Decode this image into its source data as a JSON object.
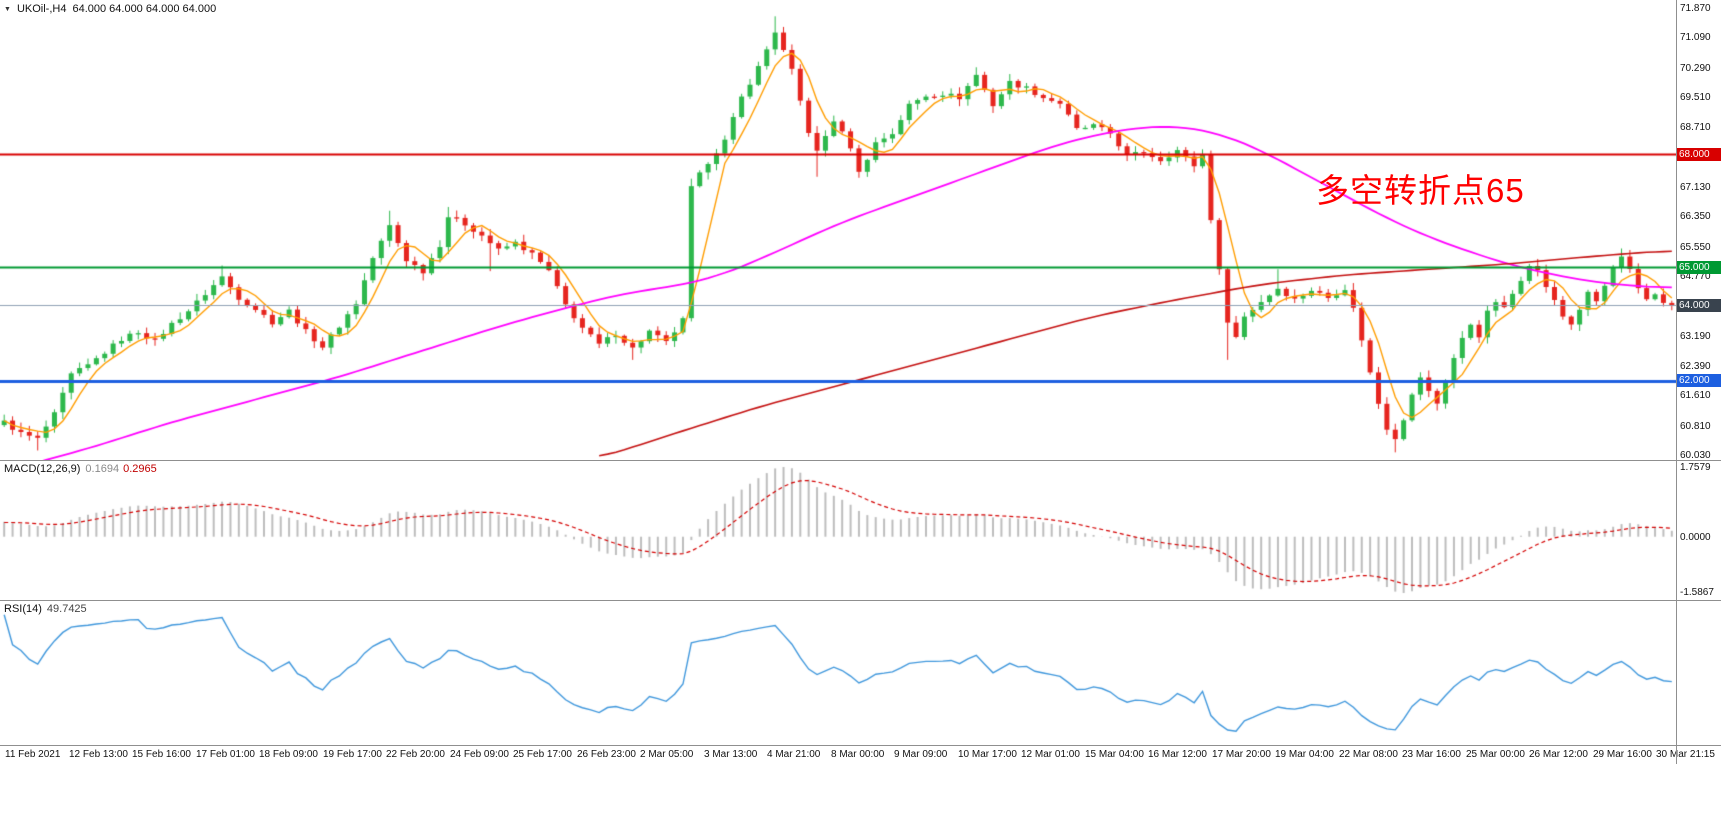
{
  "window": {
    "symbol_label": "UKOil-,H4",
    "ohlc_values": "64.000 64.000 64.000 64.000"
  },
  "annotation": {
    "text": "多空转折点65",
    "color": "#ff0000"
  },
  "chart_data": [
    {
      "type": "candlestick",
      "title": "UKOil- H4",
      "bars": 200,
      "up_color": "#2db84c",
      "down_color": "#e6251f",
      "y_axis": {
        "min": 60.03,
        "max": 71.87,
        "visible_ticks": [
          "71.870",
          "71.090",
          "70.290",
          "69.510",
          "68.710",
          "67.130",
          "66.350",
          "65.550",
          "64.770",
          "63.190",
          "62.390",
          "61.610",
          "60.810",
          "60.030"
        ]
      },
      "x_labels": [
        "11 Feb 2021",
        "12 Feb 13:00",
        "15 Feb 16:00",
        "17 Feb 01:00",
        "18 Feb 09:00",
        "19 Feb 17:00",
        "22 Feb 20:00",
        "24 Feb 09:00",
        "25 Feb 17:00",
        "26 Feb 23:00",
        "2 Mar 05:00",
        "3 Mar 13:00",
        "4 Mar 21:00",
        "8 Mar 00:00",
        "9 Mar 09:00",
        "10 Mar 17:00",
        "12 Mar 01:00",
        "15 Mar 04:00",
        "16 Mar 12:00",
        "17 Mar 20:00",
        "19 Mar 04:00",
        "22 Mar 08:00",
        "23 Mar 16:00",
        "25 Mar 00:00",
        "26 Mar 12:00",
        "29 Mar 16:00",
        "30 Mar 21:15"
      ],
      "price_anchors": [
        [
          0,
          60.9
        ],
        [
          2,
          60.6
        ],
        [
          4,
          60.45
        ],
        [
          6,
          61.1
        ],
        [
          8,
          62.15
        ],
        [
          10,
          62.4
        ],
        [
          12,
          62.75
        ],
        [
          14,
          63.1
        ],
        [
          16,
          63.3
        ],
        [
          18,
          63.05
        ],
        [
          20,
          63.5
        ],
        [
          22,
          63.85
        ],
        [
          24,
          64.3
        ],
        [
          26,
          64.75
        ],
        [
          28,
          64.2
        ],
        [
          30,
          63.9
        ],
        [
          32,
          63.55
        ],
        [
          34,
          63.85
        ],
        [
          36,
          63.3
        ],
        [
          38,
          62.9
        ],
        [
          40,
          63.45
        ],
        [
          42,
          64.05
        ],
        [
          44,
          65.25
        ],
        [
          46,
          66.1
        ],
        [
          48,
          65.2
        ],
        [
          50,
          64.9
        ],
        [
          52,
          65.6
        ],
        [
          53,
          66.35
        ],
        [
          55,
          66.15
        ],
        [
          57,
          65.85
        ],
        [
          59,
          65.45
        ],
        [
          61,
          65.65
        ],
        [
          63,
          65.35
        ],
        [
          65,
          64.9
        ],
        [
          67,
          64.0
        ],
        [
          69,
          63.4
        ],
        [
          71,
          62.95
        ],
        [
          73,
          63.25
        ],
        [
          75,
          62.85
        ],
        [
          77,
          63.3
        ],
        [
          79,
          63.0
        ],
        [
          81,
          63.6
        ],
        [
          82,
          67.1
        ],
        [
          84,
          67.8
        ],
        [
          86,
          68.35
        ],
        [
          88,
          69.5
        ],
        [
          90,
          70.3
        ],
        [
          92,
          71.25
        ],
        [
          94,
          70.2
        ],
        [
          96,
          68.6
        ],
        [
          97,
          68.05
        ],
        [
          99,
          68.9
        ],
        [
          101,
          68.2
        ],
        [
          102,
          67.5
        ],
        [
          104,
          68.3
        ],
        [
          106,
          68.55
        ],
        [
          108,
          69.3
        ],
        [
          110,
          69.55
        ],
        [
          112,
          69.6
        ],
        [
          114,
          69.5
        ],
        [
          116,
          70.1
        ],
        [
          118,
          69.3
        ],
        [
          120,
          69.9
        ],
        [
          122,
          69.75
        ],
        [
          124,
          69.5
        ],
        [
          126,
          69.35
        ],
        [
          128,
          68.65
        ],
        [
          130,
          68.75
        ],
        [
          132,
          68.55
        ],
        [
          134,
          67.95
        ],
        [
          136,
          68.05
        ],
        [
          138,
          67.85
        ],
        [
          140,
          68.1
        ],
        [
          142,
          67.7
        ],
        [
          143,
          68.0
        ],
        [
          144,
          66.3
        ],
        [
          145,
          64.9
        ],
        [
          146,
          63.6
        ],
        [
          147,
          63.15
        ],
        [
          148,
          63.7
        ],
        [
          150,
          64.1
        ],
        [
          152,
          64.45
        ],
        [
          154,
          64.15
        ],
        [
          156,
          64.4
        ],
        [
          158,
          64.2
        ],
        [
          160,
          64.45
        ],
        [
          161,
          63.9
        ],
        [
          162,
          63.1
        ],
        [
          163,
          62.2
        ],
        [
          164,
          61.4
        ],
        [
          165,
          60.75
        ],
        [
          166,
          60.5
        ],
        [
          167,
          61.0
        ],
        [
          168,
          61.6
        ],
        [
          169,
          62.1
        ],
        [
          170,
          61.7
        ],
        [
          171,
          61.4
        ],
        [
          172,
          62.0
        ],
        [
          173,
          62.6
        ],
        [
          174,
          63.1
        ],
        [
          175,
          63.5
        ],
        [
          176,
          63.2
        ],
        [
          177,
          63.8
        ],
        [
          178,
          64.1
        ],
        [
          179,
          63.9
        ],
        [
          180,
          64.3
        ],
        [
          181,
          64.7
        ],
        [
          182,
          65.1
        ],
        [
          183,
          64.9
        ],
        [
          184,
          64.5
        ],
        [
          185,
          64.1
        ],
        [
          186,
          63.7
        ],
        [
          187,
          63.5
        ],
        [
          188,
          63.9
        ],
        [
          189,
          64.3
        ],
        [
          190,
          64.1
        ],
        [
          191,
          64.5
        ],
        [
          192,
          65.0
        ],
        [
          193,
          65.25
        ],
        [
          194,
          64.9
        ],
        [
          195,
          64.4
        ],
        [
          196,
          64.15
        ],
        [
          197,
          64.3
        ],
        [
          198,
          64.1
        ],
        [
          199,
          64.0
        ]
      ],
      "wick_overrides": [
        {
          "i": 4,
          "low": 60.15
        },
        {
          "i": 26,
          "high": 65.05
        },
        {
          "i": 46,
          "high": 66.5
        },
        {
          "i": 53,
          "high": 66.6
        },
        {
          "i": 58,
          "low": 64.9
        },
        {
          "i": 75,
          "low": 62.55
        },
        {
          "i": 82,
          "high": 67.35
        },
        {
          "i": 92,
          "high": 71.65
        },
        {
          "i": 97,
          "low": 67.4
        },
        {
          "i": 116,
          "high": 70.3
        },
        {
          "i": 146,
          "low": 62.55
        },
        {
          "i": 152,
          "high": 64.95
        },
        {
          "i": 166,
          "low": 60.1
        },
        {
          "i": 193,
          "high": 65.5
        }
      ],
      "hlines": [
        {
          "price": 68.0,
          "label": "68.000",
          "color": "#d80000",
          "width": 2
        },
        {
          "price": 65.0,
          "label": "65.000",
          "color": "#009933",
          "width": 2
        },
        {
          "price": 62.0,
          "label": "62.000",
          "color": "#1d5fe0",
          "width": 3
        }
      ],
      "current_price": {
        "value": 64.0,
        "label": "64.000",
        "line_color": "#8fa0b4",
        "badge_color": "#39434e"
      },
      "moving_averages": [
        {
          "name": "fast-ma",
          "color": "#ff9d00",
          "type": "sma",
          "period": 5
        },
        {
          "name": "mid-ma",
          "color": "#ff00ff",
          "anchors": [
            [
              0,
              59.6
            ],
            [
              10,
              60.2
            ],
            [
              20,
              60.9
            ],
            [
              30,
              61.5
            ],
            [
              40,
              62.1
            ],
            [
              50,
              62.8
            ],
            [
              60,
              63.5
            ],
            [
              70,
              64.1
            ],
            [
              75,
              64.35
            ],
            [
              80,
              64.5
            ],
            [
              85,
              64.75
            ],
            [
              90,
              65.2
            ],
            [
              95,
              65.7
            ],
            [
              100,
              66.2
            ],
            [
              105,
              66.6
            ],
            [
              110,
              67.0
            ],
            [
              115,
              67.4
            ],
            [
              120,
              67.8
            ],
            [
              125,
              68.2
            ],
            [
              130,
              68.5
            ],
            [
              135,
              68.7
            ],
            [
              140,
              68.75
            ],
            [
              145,
              68.55
            ],
            [
              150,
              68.1
            ],
            [
              155,
              67.5
            ],
            [
              160,
              66.9
            ],
            [
              165,
              66.3
            ],
            [
              170,
              65.8
            ],
            [
              175,
              65.4
            ],
            [
              180,
              65.05
            ],
            [
              185,
              64.8
            ],
            [
              190,
              64.6
            ],
            [
              195,
              64.5
            ],
            [
              199,
              64.45
            ]
          ]
        },
        {
          "name": "slow-ma",
          "color": "#c41111",
          "anchors": [
            [
              71,
              59.95
            ],
            [
              80,
              60.6
            ],
            [
              90,
              61.3
            ],
            [
              100,
              61.9
            ],
            [
              110,
              62.5
            ],
            [
              120,
              63.1
            ],
            [
              130,
              63.7
            ],
            [
              140,
              64.15
            ],
            [
              150,
              64.55
            ],
            [
              160,
              64.8
            ],
            [
              170,
              64.95
            ],
            [
              180,
              65.1
            ],
            [
              190,
              65.3
            ],
            [
              199,
              65.45
            ]
          ]
        }
      ]
    },
    {
      "type": "bar",
      "name": "MACD",
      "label": "MACD(12,26,9)",
      "value_main": "0.1694",
      "value_signal": "0.2965",
      "params": [
        12,
        26,
        9
      ],
      "axis_labels": [
        "1.7579",
        "0.0000",
        "-1.5867"
      ],
      "histogram_color": "#bdbdbd",
      "signal_color": "#d40000"
    },
    {
      "type": "line",
      "name": "RSI",
      "label": "RSI(14)",
      "value_text": "49.7425",
      "period": 14,
      "line_color": "#3f97dc"
    }
  ]
}
